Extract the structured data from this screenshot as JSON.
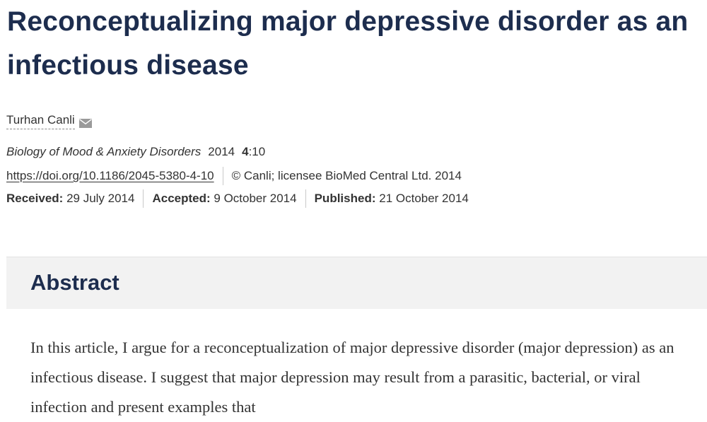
{
  "article": {
    "title": "Reconceptualizing major depressive disorder as an infectious disease",
    "author": "Turhan Canli",
    "journal": "Biology of Mood & Anxiety Disorders",
    "year": "2014",
    "volume": "4",
    "article_number": ":10",
    "doi": "https://doi.org/10.1186/2045-5380-4-10",
    "copyright": "© Canli; licensee BioMed Central Ltd. 2014",
    "received_label": "Received:",
    "received_date": "29 July 2014",
    "accepted_label": "Accepted:",
    "accepted_date": "9 October 2014",
    "published_label": "Published:",
    "published_date": "21 October 2014"
  },
  "abstract": {
    "heading": "Abstract",
    "text": "In this article, I argue for a reconceptualization of major depressive disorder (major depression) as an infectious disease. I suggest that major depression may result from a parasitic, bacterial, or viral infection and present examples that"
  },
  "icons": {
    "author_contact": "mail-icon"
  }
}
